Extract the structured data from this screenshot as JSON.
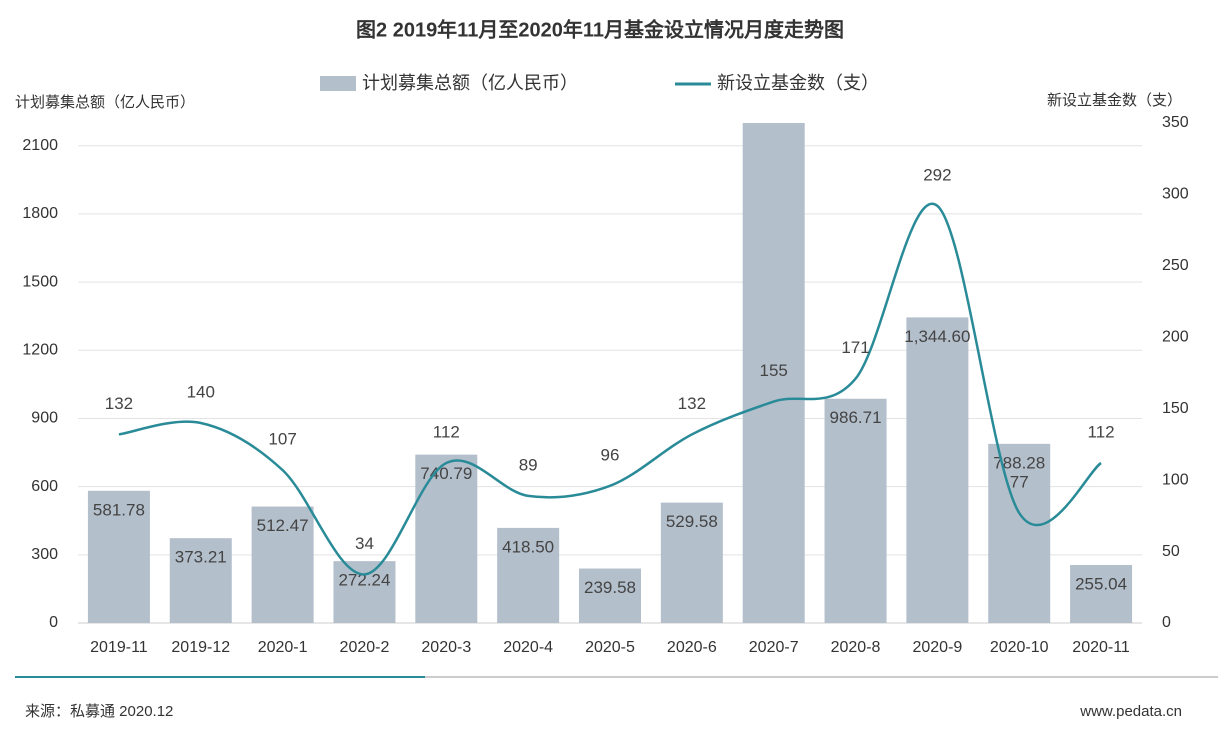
{
  "chart_data": {
    "type": "bar",
    "title": "图2 2019年11月至2020年11月基金设立情况月度走势图",
    "y_label": "计划募集总额（亿人民币）",
    "y2_label": "新设立基金数（支）",
    "source": "来源：私募通 2020.12",
    "website": "www.pedata.cn",
    "categories": [
      "2019-11",
      "2019-12",
      "2020-1",
      "2020-2",
      "2020-3",
      "2020-4",
      "2020-5",
      "2020-6",
      "2020-7",
      "2020-8",
      "2020-9",
      "2020-10",
      "2020-11"
    ],
    "series": [
      {
        "name": "计划募集总额（亿人民币）",
        "type": "bar",
        "color": "#b4bfcc",
        "values": [
          581.78,
          373.21,
          512.47,
          272.24,
          740.79,
          418.5,
          239.58,
          529.58,
          2200,
          986.71,
          1344.6,
          788.28,
          255.04
        ],
        "value_labels": [
          "581.78",
          "373.21",
          "512.47",
          "272.24",
          "740.79",
          "418.50",
          "239.58",
          "529.58",
          null,
          "986.71",
          "1,344.60",
          "788.28",
          "255.04"
        ]
      },
      {
        "name": "新设立基金数（支）",
        "type": "line",
        "axis": "y2",
        "color": "#2a8b98",
        "values": [
          132,
          140,
          107,
          34,
          112,
          89,
          96,
          132,
          155,
          171,
          292,
          77,
          112
        ]
      }
    ],
    "ylim": [
      0,
      2200
    ],
    "yticks": [
      0,
      300,
      600,
      900,
      1200,
      1500,
      1800,
      2100
    ],
    "y2lim": [
      0,
      350
    ],
    "y2ticks": [
      0,
      50,
      100,
      150,
      200,
      250,
      300,
      350
    ],
    "grid": true
  }
}
